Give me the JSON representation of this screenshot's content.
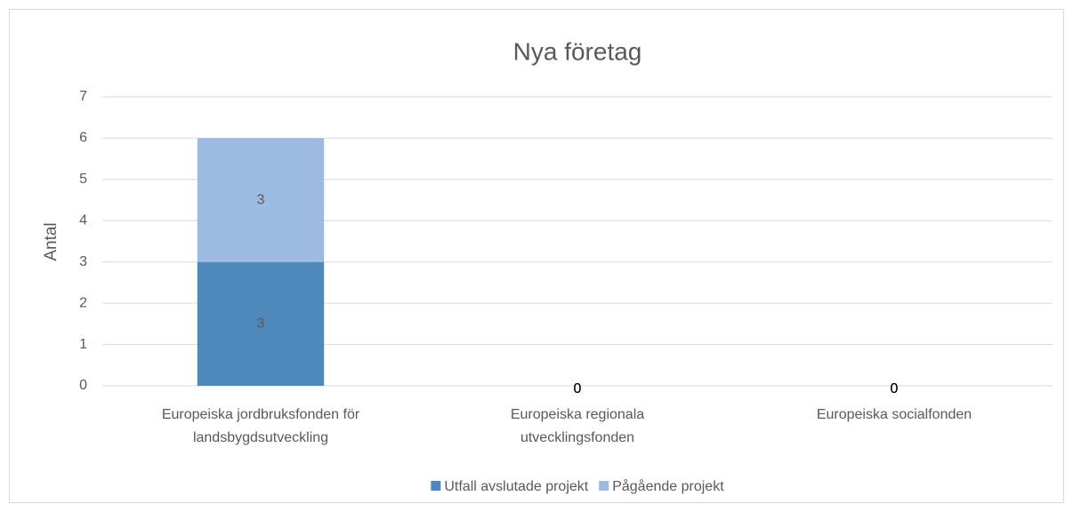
{
  "chart_data": {
    "type": "stacked_bar",
    "title": "Nya företag",
    "y_label": "Antal",
    "categories": [
      "Europeiska jordbruksfonden för landsbygdsutveckling",
      "Europeiska regionala utvecklingsfonden",
      "Europeiska socialfonden"
    ],
    "series": [
      {
        "name": "Utfall avslutade projekt",
        "color": "#4f88bb",
        "values": [
          3,
          0,
          0
        ]
      },
      {
        "name": "Pågående projekt",
        "color": "#9dbbe0",
        "values": [
          3,
          0,
          0
        ]
      }
    ],
    "ylim": [
      0,
      7
    ],
    "yticks": [
      0,
      1,
      2,
      3,
      4,
      5,
      6,
      7
    ],
    "grid": true,
    "legend": "bottom"
  }
}
